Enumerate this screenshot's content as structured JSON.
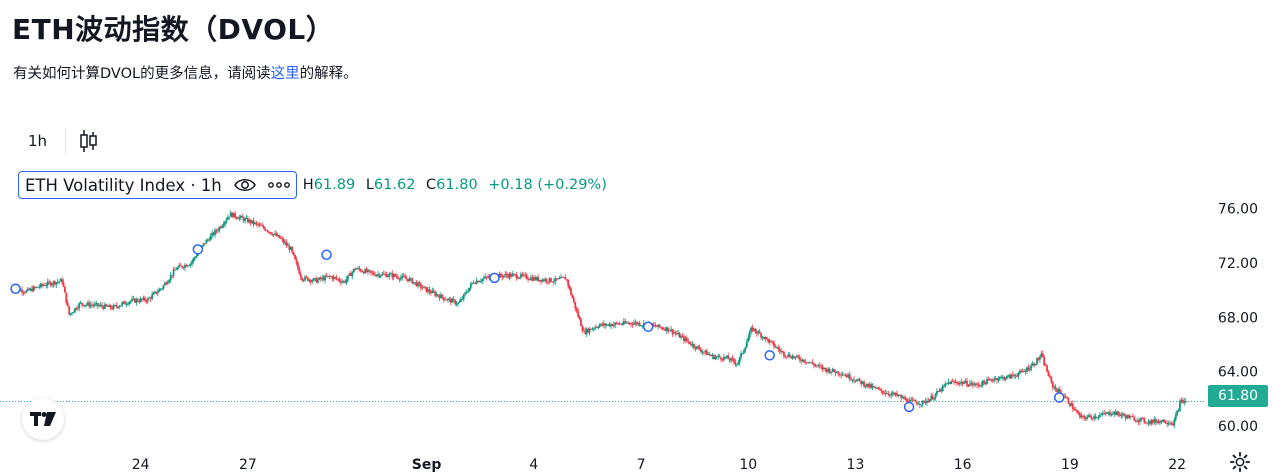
{
  "header": {
    "title": "ETH波动指数（DVOL）",
    "subtitle_before": "有关如何计算DVOL的更多信息，请阅读",
    "subtitle_link": "这里",
    "subtitle_after": "的解释。"
  },
  "toolbar": {
    "interval": "1h",
    "chart_style_icon": "candlestick-icon"
  },
  "legend": {
    "symbol": "ETH Volatility Index · 1h",
    "high_label": "H",
    "high": "61.89",
    "low_label": "L",
    "low": "61.62",
    "close_label": "C",
    "close": "61.80",
    "change": "+0.18 (+0.29%)",
    "visibility_icon": "eye-icon",
    "more_icon": "more-dots-icon"
  },
  "price_tag": "61.80",
  "colors": {
    "up": "#089981",
    "down": "#f23645",
    "accent": "#2962ff",
    "last_price": "#22ab94"
  },
  "chart_data": {
    "type": "candlestick",
    "y_ticks": [
      "76.00",
      "72.00",
      "68.00",
      "64.00",
      "60.00"
    ],
    "y_tick_values": [
      76,
      72,
      68,
      64,
      60
    ],
    "ylim": [
      58.6,
      77.0
    ],
    "x_ticks": [
      {
        "label": "24",
        "x": 24
      },
      {
        "label": "27",
        "x": 27
      },
      {
        "label": "Sep",
        "x": 32
      },
      {
        "label": "4",
        "x": 35
      },
      {
        "label": "7",
        "x": 38
      },
      {
        "label": "10",
        "x": 41
      },
      {
        "label": "13",
        "x": 44
      },
      {
        "label": "16",
        "x": 47
      },
      {
        "label": "19",
        "x": 50
      },
      {
        "label": "22",
        "x": 53
      }
    ],
    "xlim": [
      20.4,
      53.5
    ],
    "last_price": 61.8,
    "close_path": [
      [
        20.4,
        70.2
      ],
      [
        20.8,
        69.9
      ],
      [
        21.3,
        70.4
      ],
      [
        21.8,
        70.7
      ],
      [
        22.0,
        68.2
      ],
      [
        22.3,
        69.0
      ],
      [
        22.7,
        68.9
      ],
      [
        23.2,
        68.7
      ],
      [
        23.7,
        69.2
      ],
      [
        24.2,
        69.3
      ],
      [
        24.6,
        70.2
      ],
      [
        25.0,
        71.6
      ],
      [
        25.4,
        72.0
      ],
      [
        25.8,
        73.5
      ],
      [
        26.2,
        74.6
      ],
      [
        26.5,
        75.6
      ],
      [
        26.8,
        75.3
      ],
      [
        27.1,
        75.0
      ],
      [
        27.5,
        74.5
      ],
      [
        27.9,
        73.8
      ],
      [
        28.2,
        73.0
      ],
      [
        28.5,
        70.9
      ],
      [
        28.9,
        70.7
      ],
      [
        29.3,
        71.0
      ],
      [
        29.7,
        70.6
      ],
      [
        30.0,
        71.6
      ],
      [
        30.5,
        71.2
      ],
      [
        31.0,
        71.1
      ],
      [
        31.5,
        70.8
      ],
      [
        32.0,
        70.0
      ],
      [
        32.5,
        69.4
      ],
      [
        32.9,
        69.0
      ],
      [
        33.3,
        70.6
      ],
      [
        33.8,
        71.0
      ],
      [
        34.3,
        71.1
      ],
      [
        34.7,
        71.0
      ],
      [
        35.1,
        70.8
      ],
      [
        35.6,
        70.7
      ],
      [
        35.9,
        70.9
      ],
      [
        36.2,
        68.4
      ],
      [
        36.4,
        66.9
      ],
      [
        36.8,
        67.4
      ],
      [
        37.3,
        67.5
      ],
      [
        37.8,
        67.6
      ],
      [
        38.3,
        67.4
      ],
      [
        38.8,
        67.1
      ],
      [
        39.2,
        66.4
      ],
      [
        39.6,
        65.7
      ],
      [
        40.0,
        65.1
      ],
      [
        40.4,
        65.0
      ],
      [
        40.7,
        64.6
      ],
      [
        40.9,
        65.8
      ],
      [
        41.1,
        67.2
      ],
      [
        41.5,
        66.4
      ],
      [
        42.0,
        65.3
      ],
      [
        42.6,
        64.8
      ],
      [
        43.1,
        64.2
      ],
      [
        43.6,
        63.9
      ],
      [
        44.0,
        63.4
      ],
      [
        44.4,
        62.9
      ],
      [
        44.8,
        62.5
      ],
      [
        45.2,
        62.2
      ],
      [
        45.5,
        61.8
      ],
      [
        45.9,
        61.7
      ],
      [
        46.2,
        62.2
      ],
      [
        46.6,
        63.2
      ],
      [
        47.0,
        63.2
      ],
      [
        47.4,
        63.0
      ],
      [
        47.9,
        63.5
      ],
      [
        48.3,
        63.6
      ],
      [
        48.7,
        64.0
      ],
      [
        49.0,
        64.6
      ],
      [
        49.2,
        65.2
      ],
      [
        49.5,
        63.0
      ],
      [
        49.9,
        62.0
      ],
      [
        50.3,
        60.6
      ],
      [
        50.7,
        60.7
      ],
      [
        51.2,
        61.0
      ],
      [
        51.7,
        60.6
      ],
      [
        52.2,
        60.3
      ],
      [
        52.6,
        60.4
      ],
      [
        52.9,
        60.2
      ],
      [
        53.1,
        61.8
      ],
      [
        53.3,
        61.8
      ]
    ],
    "markers": [
      {
        "x": 20.5,
        "y": 70.1
      },
      {
        "x": 25.6,
        "y": 73.0
      },
      {
        "x": 29.2,
        "y": 72.6
      },
      {
        "x": 33.9,
        "y": 70.9
      },
      {
        "x": 38.2,
        "y": 67.3
      },
      {
        "x": 41.6,
        "y": 65.2
      },
      {
        "x": 45.5,
        "y": 61.4
      },
      {
        "x": 49.7,
        "y": 62.1
      }
    ]
  }
}
